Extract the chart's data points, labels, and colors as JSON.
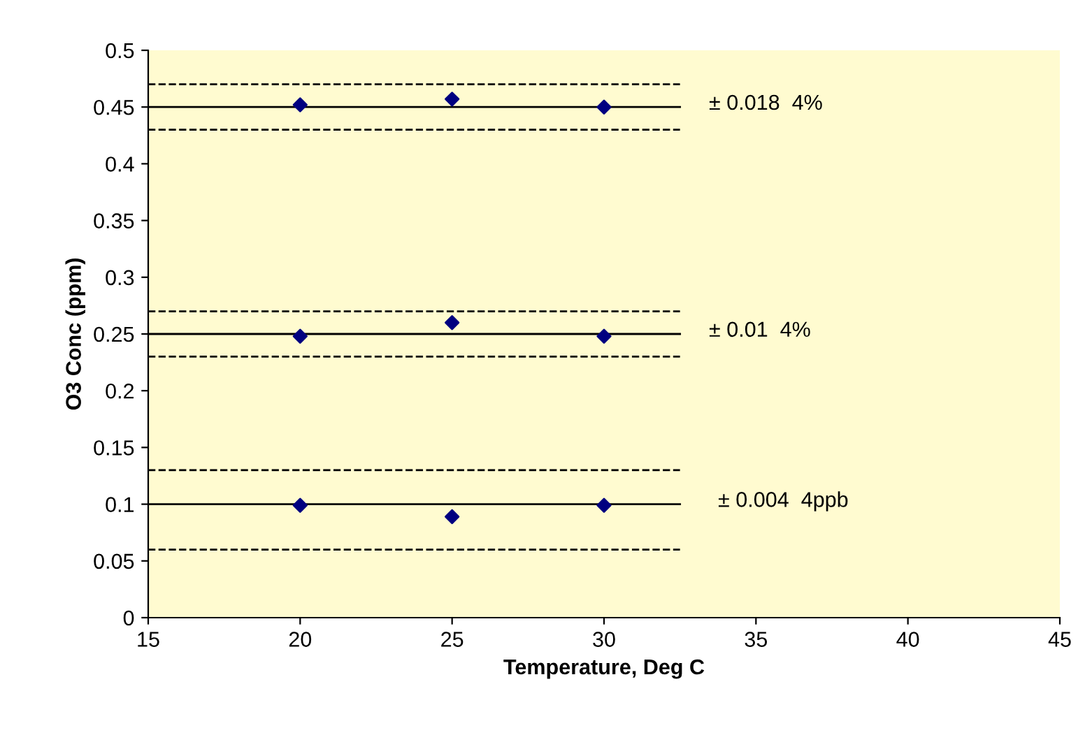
{
  "chart_data": {
    "type": "scatter",
    "xlabel": "Temperature, Deg C",
    "ylabel": "O3 Conc (ppm)",
    "xlim": [
      15,
      45
    ],
    "ylim": [
      0,
      0.5
    ],
    "xticks": [
      15,
      20,
      25,
      30,
      35,
      40,
      45
    ],
    "yticks": [
      0,
      0.05,
      0.1,
      0.15,
      0.2,
      0.25,
      0.3,
      0.35,
      0.4,
      0.45,
      0.5
    ],
    "grid": false,
    "series": [
      {
        "type": "line",
        "x": [
          15,
          32.5
        ],
        "values": [
          0.45,
          0.45
        ],
        "color": "#000000",
        "line_style": "solid"
      },
      {
        "type": "line",
        "x": [
          15,
          32.5
        ],
        "values": [
          0.47,
          0.47
        ],
        "color": "#000000",
        "line_style": "dashed"
      },
      {
        "type": "line",
        "x": [
          15,
          32.5
        ],
        "values": [
          0.43,
          0.43
        ],
        "color": "#000000",
        "line_style": "dashed"
      },
      {
        "type": "line",
        "x": [
          15,
          32.5
        ],
        "values": [
          0.25,
          0.25
        ],
        "color": "#000000",
        "line_style": "solid"
      },
      {
        "type": "line",
        "x": [
          15,
          32.5
        ],
        "values": [
          0.27,
          0.27
        ],
        "color": "#000000",
        "line_style": "dashed"
      },
      {
        "type": "line",
        "x": [
          15,
          32.5
        ],
        "values": [
          0.23,
          0.23
        ],
        "color": "#000000",
        "line_style": "dashed"
      },
      {
        "type": "line",
        "x": [
          15,
          32.5
        ],
        "values": [
          0.1,
          0.1
        ],
        "color": "#000000",
        "line_style": "solid"
      },
      {
        "type": "line",
        "x": [
          15,
          32.5
        ],
        "values": [
          0.13,
          0.13
        ],
        "color": "#000000",
        "line_style": "dashed"
      },
      {
        "type": "line",
        "x": [
          15,
          32.5
        ],
        "values": [
          0.06,
          0.06
        ],
        "color": "#000000",
        "line_style": "dashed"
      },
      {
        "x": [
          20,
          25,
          30
        ],
        "values": [
          0.452,
          0.457,
          0.45
        ],
        "color": "#000080",
        "marker": "diamond"
      },
      {
        "x": [
          20,
          25,
          30
        ],
        "values": [
          0.248,
          0.26,
          0.248
        ],
        "color": "#000080",
        "marker": "diamond"
      },
      {
        "x": [
          20,
          25,
          30
        ],
        "values": [
          0.099,
          0.089,
          0.099
        ],
        "color": "#000080",
        "marker": "diamond"
      }
    ],
    "annotations": [
      "± 0.018  4%",
      "± 0.01  4%",
      "± 0.004  4ppb"
    ]
  }
}
